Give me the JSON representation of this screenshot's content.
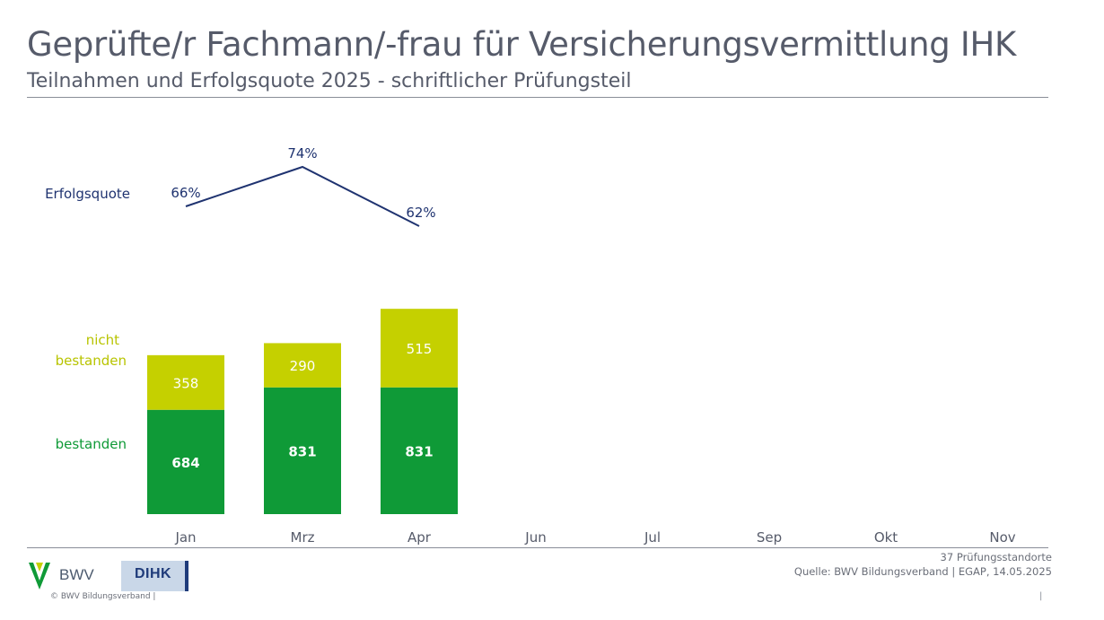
{
  "header": {
    "title": "Geprüfte/r Fachmann/-frau für Versicherungsvermittlung IHK",
    "subtitle": "Teilnahmen und Erfolgsquote 2025 - schriftlicher Prüfungsteil"
  },
  "legend": {
    "rate_label": "Erfolgsquote",
    "failed_label_line1": "nicht",
    "failed_label_line2": "bestanden",
    "passed_label": "bestanden"
  },
  "colors": {
    "passed": "#0f9a37",
    "failed": "#c5d000",
    "line": "#1f3370",
    "text": "#565b6a"
  },
  "chart_data": {
    "type": "bar",
    "stacked": true,
    "categories": [
      "Jan",
      "Mrz",
      "Apr",
      "Jun",
      "Jul",
      "Sep",
      "Okt",
      "Nov"
    ],
    "series": [
      {
        "name": "bestanden",
        "values": [
          684,
          831,
          831,
          null,
          null,
          null,
          null,
          null
        ]
      },
      {
        "name": "nicht bestanden",
        "values": [
          358,
          290,
          515,
          null,
          null,
          null,
          null,
          null
        ]
      }
    ],
    "line_series": {
      "name": "Erfolgsquote",
      "values": [
        66,
        74,
        62,
        null,
        null,
        null,
        null,
        null
      ],
      "labels": [
        "66%",
        "74%",
        "62%",
        null,
        null,
        null,
        null,
        null
      ]
    },
    "legend": "left"
  },
  "footer": {
    "locations": "37 Prüfungsstandorte",
    "source": "Quelle: BWV Bildungsverband | EGAP, 14.05.2025",
    "copyright": "© BWV Bildungsverband |",
    "page_marker": "|",
    "bwv_logo_text": "BWV",
    "dihk_logo_text": "DIHK"
  }
}
